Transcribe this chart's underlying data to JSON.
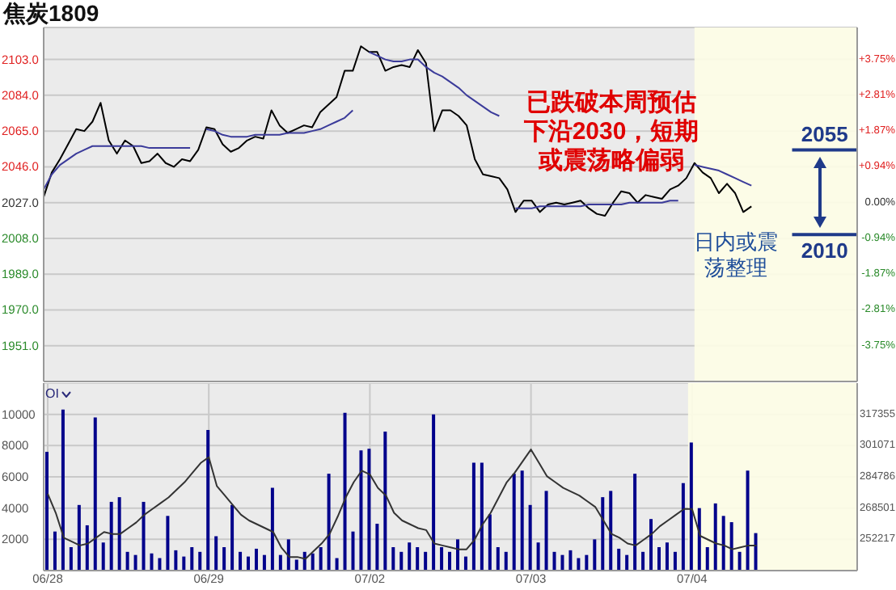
{
  "chart_data": [
    {
      "type": "line",
      "title": "焦炭1809",
      "categories": [
        null,
        null,
        null,
        null,
        null,
        null,
        null,
        null,
        null,
        null,
        null,
        null,
        null,
        null,
        null,
        null,
        null,
        null,
        null,
        null,
        null,
        null,
        null,
        null,
        null,
        null,
        null,
        null,
        null,
        null,
        null,
        null,
        null,
        null,
        null,
        null,
        null,
        null,
        null,
        null,
        null,
        null,
        null,
        null,
        null,
        null,
        null,
        null,
        null,
        null,
        null,
        null,
        null,
        null,
        null,
        null,
        null,
        null,
        null,
        null,
        null,
        null,
        null,
        null,
        null,
        null,
        null,
        null,
        null,
        null,
        null,
        null,
        null,
        null,
        null,
        null,
        null,
        null,
        null,
        null,
        null,
        null,
        null,
        null,
        null,
        null,
        null,
        null,
        null,
        null,
        null,
        null,
        null,
        null,
        null,
        null,
        null,
        null,
        null,
        null,
        null
      ],
      "series": [
        {
          "color": "#000000",
          "values": [
            2030,
            2043,
            2050,
            2058,
            2066,
            2065,
            2070,
            2080,
            2060,
            2053,
            2060,
            2057,
            2048,
            2049,
            2053,
            2048,
            2046,
            2050,
            2049,
            2055,
            2067,
            2066,
            2058,
            2054,
            2056,
            2060,
            2062,
            2061,
            2076,
            2068,
            2064,
            2066,
            2068,
            2067,
            2075,
            2079,
            2083,
            2097,
            2097,
            2110,
            2107,
            2107,
            2097,
            2099,
            2100,
            2099,
            2108,
            2101,
            2065,
            2076,
            2076,
            2073,
            2068,
            2050,
            2042,
            2041,
            2040,
            2034,
            2022,
            2028,
            2028,
            2022,
            2026,
            2027,
            2026,
            2027,
            2028,
            2024,
            2021,
            2020,
            2027,
            2033,
            2032,
            2027,
            2031,
            2030,
            2029,
            2034,
            2036,
            2040,
            2048,
            2043,
            2040,
            2032,
            2037,
            2032,
            2022,
            2025,
            null,
            null,
            null,
            null,
            null,
            null,
            null,
            null,
            null,
            null,
            null,
            null,
            null
          ]
        },
        {
          "color": "#3b3b9a",
          "values": [
            2034,
            2042,
            2047,
            2050,
            2053,
            2055,
            2057,
            2057,
            2057,
            2057,
            2057,
            2057,
            2057,
            2056,
            2056,
            2056,
            2056,
            2056,
            2056,
            null,
            2066,
            2065,
            2063,
            2062,
            2062,
            2062,
            2063,
            2063,
            2063,
            2063,
            2064,
            2064,
            2064,
            2065,
            2066,
            2068,
            2070,
            2072,
            2076,
            null,
            2107,
            2105,
            2103,
            2102,
            2102,
            2103,
            2103,
            2099,
            2096,
            2094,
            2091,
            2088,
            2084,
            2081,
            2078,
            2075,
            2073,
            null,
            2024,
            2024,
            2024,
            2025,
            2025,
            2025,
            2025,
            2025,
            2025,
            2026,
            2026,
            2026,
            2026,
            2026,
            2027,
            2027,
            2027,
            2027,
            2027,
            2028,
            2028,
            null,
            2047,
            2046,
            2045,
            2044,
            2042,
            2040,
            2038,
            2036,
            null,
            null,
            null,
            null,
            null,
            null,
            null,
            null,
            null,
            null,
            null,
            null,
            null
          ]
        }
      ],
      "ylim": [
        1932,
        2120
      ],
      "yticks": [
        {
          "value": 1951,
          "label": "1951.0"
        },
        {
          "value": 1970,
          "label": "1970.0"
        },
        {
          "value": 1989,
          "label": "1989.0"
        },
        {
          "value": 2008,
          "label": "2008.0"
        },
        {
          "value": 2027,
          "label": "2027.0"
        },
        {
          "value": 2046,
          "label": "2046.0"
        },
        {
          "value": 2065,
          "label": "2065.0"
        },
        {
          "value": 2084,
          "label": "2084.0"
        },
        {
          "value": 2103,
          "label": "2103.0"
        }
      ],
      "y2lim": [
        -4.69,
        4.59
      ],
      "y2ticks": [
        {
          "value": -3.75,
          "label": "-3.75%"
        },
        {
          "value": -2.81,
          "label": "-2.81%"
        },
        {
          "value": -1.87,
          "label": "-1.87%"
        },
        {
          "value": -0.94,
          "label": "-0.94%"
        },
        {
          "value": 0,
          "label": "0.00%"
        },
        {
          "value": 0.94,
          "label": "+0.94%"
        },
        {
          "value": 1.87,
          "label": "+1.87%"
        },
        {
          "value": 2.81,
          "label": "+2.81%"
        },
        {
          "value": 3.75,
          "label": "+3.75%"
        }
      ],
      "tick_labels": [
        "y",
        "y2"
      ],
      "grid": true,
      "ref_lines": [
        {
          "axis": "y",
          "value": 2055,
          "label": "2055",
          "color": "#1f3a8a"
        },
        {
          "axis": "y",
          "value": 2010,
          "label": "2010",
          "color": "#1f3a8a"
        }
      ],
      "annotations": [
        "已跌破本周预估下沿2030，短期或震荡略偏弱",
        "日内或震荡整理"
      ]
    },
    {
      "type": "bar",
      "categories": [
        "06/28",
        null,
        null,
        null,
        null,
        null,
        null,
        null,
        null,
        null,
        null,
        null,
        null,
        null,
        null,
        null,
        null,
        null,
        null,
        null,
        "06/29",
        null,
        null,
        null,
        null,
        null,
        null,
        null,
        null,
        null,
        null,
        null,
        null,
        null,
        null,
        null,
        null,
        null,
        null,
        null,
        "07/02",
        null,
        null,
        null,
        null,
        null,
        null,
        null,
        null,
        null,
        null,
        null,
        null,
        null,
        null,
        null,
        null,
        null,
        null,
        null,
        "07/03",
        null,
        null,
        null,
        null,
        null,
        null,
        null,
        null,
        null,
        null,
        null,
        null,
        null,
        null,
        null,
        null,
        null,
        null,
        null,
        "07/04",
        null,
        null,
        null,
        null,
        null,
        null,
        null,
        null,
        null,
        null,
        null,
        null,
        null,
        null,
        null,
        null,
        null,
        null,
        null,
        null
      ],
      "series": [
        {
          "color": "#00008b",
          "values": [
            7600,
            2500,
            10300,
            1500,
            4200,
            2900,
            9800,
            1800,
            4400,
            4700,
            1200,
            1000,
            4400,
            1100,
            800,
            3500,
            1300,
            900,
            1500,
            1200,
            9000,
            2200,
            1500,
            4200,
            1200,
            900,
            1400,
            1000,
            5300,
            1000,
            2000,
            700,
            1200,
            1100,
            1500,
            6200,
            800,
            10100,
            2500,
            7700,
            7800,
            3000,
            8900,
            1500,
            1200,
            1800,
            1500,
            1200,
            10000,
            1500,
            1200,
            2000,
            900,
            6900,
            6900,
            3600,
            1500,
            1200,
            6200,
            6400,
            4200,
            1800,
            5100,
            1200,
            1000,
            1300,
            800,
            1000,
            2000,
            4700,
            5100,
            1400,
            1000,
            6200,
            1200,
            3300,
            1500,
            1800,
            1200,
            5600,
            8200,
            4000,
            1500,
            4300,
            3500,
            3100,
            1200,
            6400,
            2400,
            null,
            null,
            null,
            null,
            null,
            null,
            null,
            null,
            null,
            null,
            null,
            null
          ]
        },
        {
          "type": "line",
          "axis": "y2",
          "color": "#333333",
          "values": [
            276000,
            266000,
            253000,
            251000,
            249000,
            250000,
            253000,
            256000,
            255000,
            255000,
            258000,
            261000,
            265000,
            268000,
            271000,
            274000,
            278000,
            282000,
            287000,
            292000,
            295000,
            280000,
            275000,
            270000,
            265000,
            262000,
            260000,
            258000,
            256000,
            248000,
            243000,
            243000,
            242000,
            246000,
            250000,
            255000,
            264000,
            274000,
            282000,
            288000,
            286000,
            279000,
            275000,
            266000,
            262000,
            260000,
            258000,
            257000,
            250000,
            249000,
            248000,
            247000,
            247000,
            252000,
            260000,
            266000,
            274000,
            282000,
            287000,
            293000,
            299000,
            292000,
            285000,
            282000,
            279000,
            277000,
            275000,
            272000,
            269000,
            262000,
            255000,
            253000,
            250000,
            249000,
            252000,
            255000,
            259000,
            262000,
            265000,
            268000,
            268000,
            254000,
            252000,
            250000,
            249000,
            247000,
            248000,
            249000,
            249000,
            null,
            null,
            null,
            null,
            null,
            null,
            null,
            null,
            null,
            null,
            null,
            null
          ]
        }
      ],
      "ylim": [
        0,
        12000
      ],
      "yticks": [
        2000,
        4000,
        6000,
        8000,
        10000
      ],
      "y2lim": [
        235900,
        333600
      ],
      "y2ticks": [
        252217,
        268501,
        284786,
        301071,
        317355
      ],
      "grid": true,
      "annotations": [
        "OI"
      ]
    }
  ]
}
